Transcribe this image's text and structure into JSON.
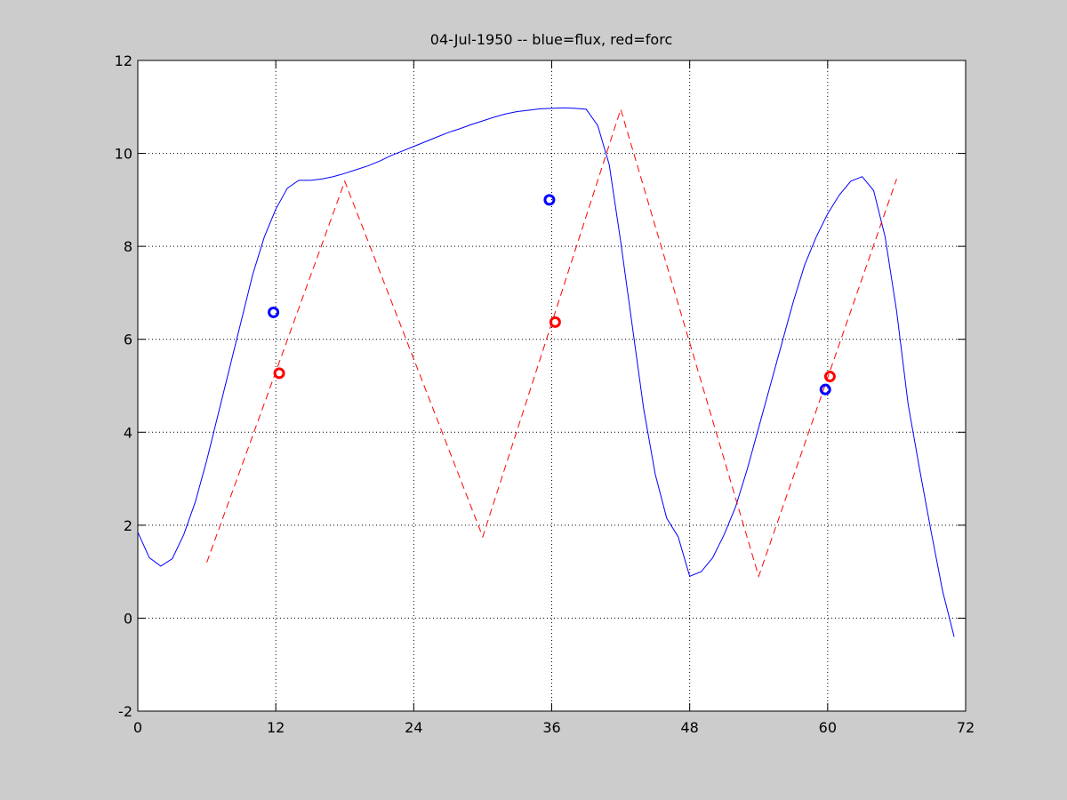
{
  "chart_data": {
    "type": "line",
    "title": "04-Jul-1950 -- blue=flux, red=forc",
    "xlim": [
      0,
      72
    ],
    "xticks": [
      0,
      12,
      24,
      36,
      48,
      60,
      72
    ],
    "ylim": [
      -2,
      12
    ],
    "yticks": [
      -2,
      0,
      2,
      4,
      6,
      8,
      10,
      12
    ],
    "grid": true,
    "series": [
      {
        "color": "#0000ff",
        "style": "solid",
        "marker": "none",
        "x": [
          0,
          1,
          2,
          3,
          4,
          5,
          6,
          7,
          8,
          9,
          10,
          11,
          12,
          13,
          14,
          15,
          16,
          17,
          18,
          19,
          20,
          21,
          22,
          23,
          24,
          25,
          26,
          27,
          28,
          29,
          30,
          31,
          32,
          33,
          34,
          35,
          36,
          37,
          38,
          39,
          40,
          41,
          42,
          43,
          44,
          45,
          46,
          47,
          48,
          49,
          50,
          51,
          52,
          53,
          54,
          55,
          56,
          57,
          58,
          59,
          60,
          61,
          62,
          63,
          64,
          65,
          66,
          67,
          68,
          69,
          70,
          71
        ],
        "values": [
          1.85,
          1.3,
          1.12,
          1.28,
          1.8,
          2.5,
          3.4,
          4.4,
          5.4,
          6.4,
          7.4,
          8.2,
          8.8,
          9.25,
          9.42,
          9.42,
          9.45,
          9.5,
          9.57,
          9.65,
          9.73,
          9.83,
          9.95,
          10.05,
          10.15,
          10.25,
          10.35,
          10.45,
          10.53,
          10.62,
          10.7,
          10.78,
          10.85,
          10.9,
          10.93,
          10.96,
          10.97,
          10.98,
          10.97,
          10.95,
          10.6,
          9.76,
          8.1,
          6.3,
          4.5,
          3.1,
          2.15,
          1.75,
          0.9,
          1.0,
          1.3,
          1.8,
          2.4,
          3.2,
          4.1,
          5.0,
          5.9,
          6.8,
          7.6,
          8.2,
          8.7,
          9.1,
          9.4,
          9.5,
          9.2,
          8.2,
          6.6,
          4.6,
          3.2,
          1.86,
          0.58,
          -0.4
        ]
      },
      {
        "color": "#ff0000",
        "style": "dashed",
        "marker": "none",
        "x": [
          6,
          18,
          30,
          42,
          54,
          66
        ],
        "values": [
          1.2,
          9.4,
          1.75,
          10.95,
          0.9,
          9.45
        ]
      },
      {
        "color": "#0000ff",
        "style": "none",
        "marker": "circle",
        "x": [
          11.8,
          35.8,
          59.8
        ],
        "values": [
          6.58,
          9.0,
          4.92
        ]
      },
      {
        "color": "#ff0000",
        "style": "none",
        "marker": "circle",
        "x": [
          12.3,
          36.3,
          60.2
        ],
        "values": [
          5.27,
          6.37,
          5.2
        ]
      }
    ]
  }
}
